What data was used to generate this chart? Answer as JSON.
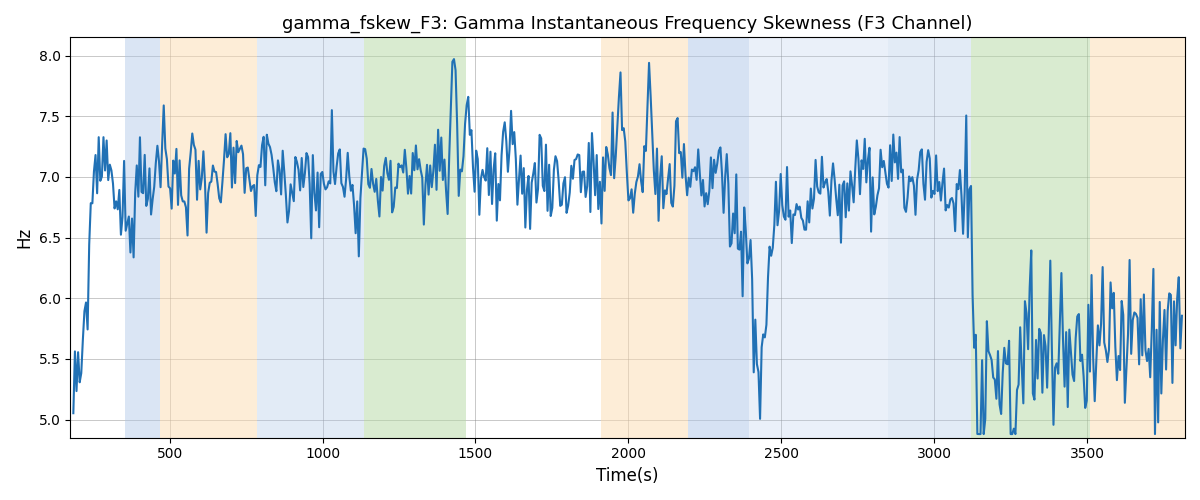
{
  "title": "gamma_fskew_F3: Gamma Instantaneous Frequency Skewness (F3 Channel)",
  "xlabel": "Time(s)",
  "ylabel": "Hz",
  "xlim": [
    175,
    3820
  ],
  "ylim": [
    4.85,
    8.15
  ],
  "yticks": [
    5.0,
    5.5,
    6.0,
    6.5,
    7.0,
    7.5,
    8.0
  ],
  "xticks": [
    500,
    1000,
    1500,
    2000,
    2500,
    3000,
    3500
  ],
  "line_color": "#2171b5",
  "line_width": 1.5,
  "bands": [
    {
      "xmin": 355,
      "xmax": 470,
      "color": "#aec6e8",
      "alpha": 0.45
    },
    {
      "xmin": 470,
      "xmax": 785,
      "color": "#fddcb0",
      "alpha": 0.5
    },
    {
      "xmin": 785,
      "xmax": 1135,
      "color": "#aec6e8",
      "alpha": 0.35
    },
    {
      "xmin": 1135,
      "xmax": 1470,
      "color": "#b5d9a3",
      "alpha": 0.5
    },
    {
      "xmin": 1910,
      "xmax": 2195,
      "color": "#fddcb0",
      "alpha": 0.5
    },
    {
      "xmin": 2195,
      "xmax": 2395,
      "color": "#aec6e8",
      "alpha": 0.5
    },
    {
      "xmin": 2395,
      "xmax": 2850,
      "color": "#aec6e8",
      "alpha": 0.25
    },
    {
      "xmin": 2850,
      "xmax": 3120,
      "color": "#aec6e8",
      "alpha": 0.35
    },
    {
      "xmin": 3120,
      "xmax": 3510,
      "color": "#b5d9a3",
      "alpha": 0.5
    },
    {
      "xmin": 3510,
      "xmax": 3820,
      "color": "#fddcb0",
      "alpha": 0.5
    }
  ],
  "seed": 99,
  "title_fontsize": 13,
  "axis_fontsize": 12,
  "tick_fontsize": 10,
  "figsize": [
    12.0,
    5.0
  ],
  "dpi": 100
}
